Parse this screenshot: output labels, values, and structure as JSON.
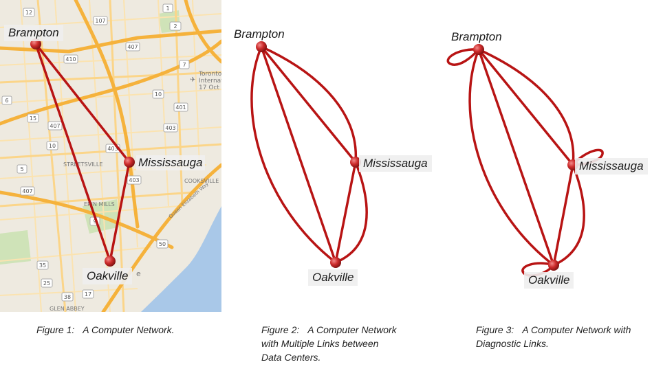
{
  "colors": {
    "link": "#b81414",
    "node": "#cc2b2b",
    "water": "#a9c8e8",
    "highway": "#f5b23c",
    "road": "#fbd589",
    "land": "#eeeae0",
    "park": "#c9dfb0"
  },
  "figure1": {
    "nodes": {
      "brampton": "Brampton",
      "mississauga": "Mississauga",
      "oakville": "Oakville"
    },
    "map_labels": {
      "streetsville": "STREETSVILLE",
      "erin_mills": "ERIN MILLS",
      "cooksville": "COOKSVILLE",
      "glen_abbey": "GLEN ABBEY",
      "qew": "Queen Elizabeth Way",
      "airport_l1": "Toronto",
      "airport_l2": "Internat",
      "airport_l3": "17 Oct",
      "fragment_e": "e"
    },
    "shields": [
      "107",
      "2",
      "407",
      "410",
      "7",
      "10",
      "1",
      "401",
      "403",
      "407",
      "10",
      "5",
      "403",
      "403",
      "407",
      "17",
      "38",
      "35",
      "25",
      "6",
      "9",
      "50",
      "15",
      "12"
    ],
    "caption": {
      "num": "Figure 1:",
      "text": "A Computer Network."
    }
  },
  "figure2": {
    "nodes": {
      "brampton": "Brampton",
      "mississauga": "Mississauga",
      "oakville": "Oakville"
    },
    "caption": {
      "num": "Figure 2:",
      "line1": "A Computer Network",
      "line2": "with Multiple Links between",
      "line3": "Data Centers."
    }
  },
  "figure3": {
    "nodes": {
      "brampton": "Brampton",
      "mississauga": "Mississauga",
      "oakville": "Oakville"
    },
    "caption": {
      "num": "Figure 3:",
      "line1": "A Computer Network with",
      "line2": "Diagnostic Links."
    }
  }
}
